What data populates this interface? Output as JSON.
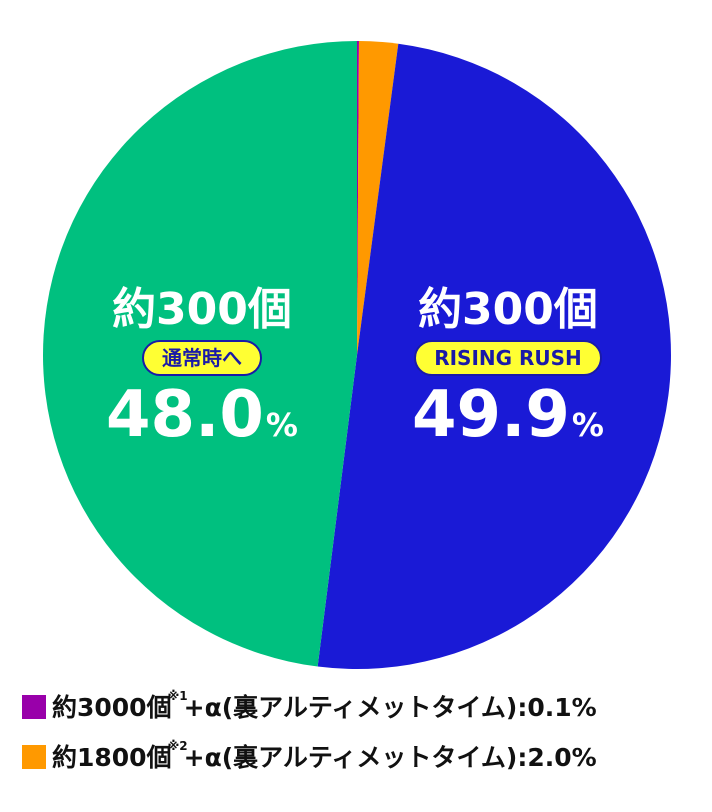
{
  "chart_data": {
    "type": "pie",
    "start_angle_deg": 0,
    "direction": "clockwise",
    "slices": [
      {
        "label": "約3000個+α(裏アルティメットタイム)",
        "value": 0.1,
        "color": "#9900aa"
      },
      {
        "label": "約1800個+α(裏アルティメットタイム)",
        "value": 2.0,
        "color": "#ff9900"
      },
      {
        "label": "約300個 RISING RUSH",
        "value": 49.9,
        "color": "#1a1ad6"
      },
      {
        "label": "約300個 通常時へ",
        "value": 48.0,
        "color": "#00c07f"
      }
    ],
    "callouts": {
      "green": {
        "prize": "約300個",
        "route": "通常時へ",
        "pct_value": "48.0",
        "pct_unit": "%"
      },
      "blue": {
        "prize": "約300個",
        "route": "RISING RUSH",
        "pct_value": "49.9",
        "pct_unit": "%"
      }
    },
    "legend": [
      {
        "color": "#9900aa",
        "prefix": "約3000",
        "unit": "個",
        "note": "※1",
        "suffix": "+α(裏アルティメットタイム):0.1%"
      },
      {
        "color": "#ff9900",
        "prefix": "約1800",
        "unit": "個",
        "note": "※2",
        "suffix": "+α(裏アルティメットタイム):2.0%"
      }
    ]
  }
}
